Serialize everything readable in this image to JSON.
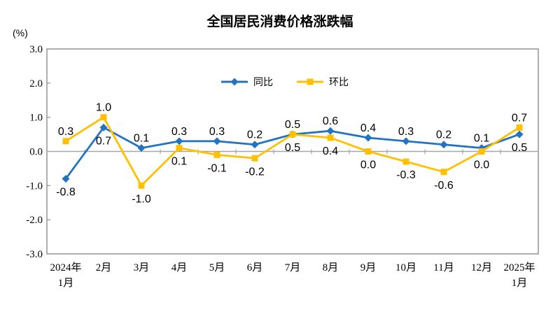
{
  "chart_data": {
    "type": "line",
    "title": "全国居民消费价格涨跌幅",
    "unit_label": "(%)",
    "categories": [
      "2024年\n1月",
      "2月",
      "3月",
      "4月",
      "5月",
      "6月",
      "7月",
      "8月",
      "9月",
      "10月",
      "11月",
      "12月",
      "2025年\n1月"
    ],
    "series": [
      {
        "name": "同比",
        "color": "#2273C2",
        "marker": "diamond",
        "values": [
          -0.8,
          0.7,
          0.1,
          0.3,
          0.3,
          0.2,
          0.5,
          0.6,
          0.4,
          0.3,
          0.2,
          0.1,
          0.5
        ],
        "label_positions": [
          "below",
          "below",
          "above",
          "above",
          "above",
          "above",
          "above",
          "above",
          "above",
          "above",
          "above",
          "above",
          "below"
        ]
      },
      {
        "name": "环比",
        "color": "#FFC000",
        "marker": "square",
        "values": [
          0.3,
          1.0,
          -1.0,
          0.1,
          -0.1,
          -0.2,
          0.5,
          0.4,
          0.0,
          -0.3,
          -0.6,
          0.0,
          0.7
        ],
        "label_positions": [
          "above",
          "above",
          "below",
          "below",
          "below",
          "below",
          "below",
          "below",
          "below",
          "below",
          "below",
          "below",
          "above"
        ]
      }
    ],
    "ylim": [
      -3,
      3
    ],
    "ytick_step": 1.0,
    "ytick_labels": [
      "3.0",
      "2.0",
      "1.0",
      "0.0",
      "-1.0",
      "-2.0",
      "-3.0"
    ],
    "legend_position": "top-center",
    "grid": false,
    "colors": {
      "plot_border": "#8C8C8C",
      "zero_line": "#A6A6A6",
      "text": "#000000",
      "background": "#FFFFFF"
    }
  }
}
